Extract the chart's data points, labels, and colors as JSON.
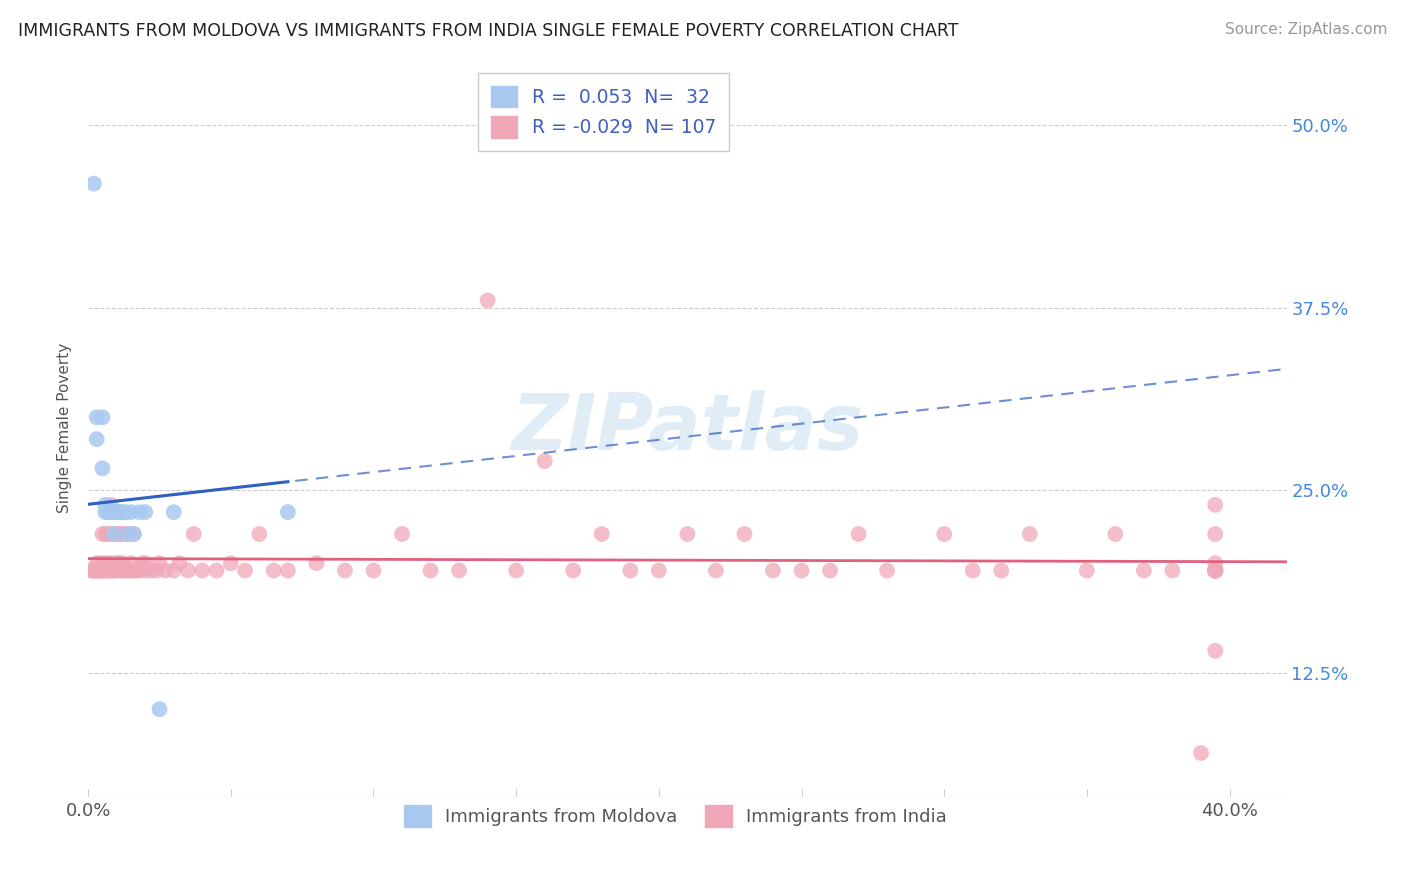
{
  "title": "IMMIGRANTS FROM MOLDOVA VS IMMIGRANTS FROM INDIA SINGLE FEMALE POVERTY CORRELATION CHART",
  "source": "Source: ZipAtlas.com",
  "ylabel": "Single Female Poverty",
  "xlim": [
    0.0,
    0.42
  ],
  "ylim": [
    0.04,
    0.545
  ],
  "moldova_R": 0.053,
  "moldova_N": 32,
  "india_R": -0.029,
  "india_N": 107,
  "moldova_color": "#a8c8f0",
  "india_color": "#f0a8b8",
  "moldova_line_color": "#3060c0",
  "india_line_color": "#e06080",
  "watermark": "ZIPatlas",
  "legend_label_moldova": "Immigrants from Moldova",
  "legend_label_india": "Immigrants from India",
  "ytick_positions": [
    0.125,
    0.25,
    0.375,
    0.5
  ],
  "ytick_labels": [
    "12.5%",
    "25.0%",
    "37.5%",
    "50.0%"
  ],
  "moldova_x": [
    0.002,
    0.003,
    0.003,
    0.005,
    0.005,
    0.006,
    0.006,
    0.007,
    0.007,
    0.008,
    0.008,
    0.008,
    0.009,
    0.009,
    0.009,
    0.009,
    0.01,
    0.01,
    0.01,
    0.01,
    0.011,
    0.011,
    0.012,
    0.013,
    0.014,
    0.015,
    0.016,
    0.018,
    0.02,
    0.025,
    0.03,
    0.07
  ],
  "moldova_y": [
    0.46,
    0.285,
    0.3,
    0.265,
    0.3,
    0.24,
    0.235,
    0.235,
    0.235,
    0.235,
    0.235,
    0.235,
    0.235,
    0.235,
    0.235,
    0.22,
    0.235,
    0.235,
    0.235,
    0.235,
    0.235,
    0.235,
    0.235,
    0.235,
    0.22,
    0.235,
    0.22,
    0.235,
    0.235,
    0.1,
    0.235,
    0.235
  ],
  "india_x": [
    0.001,
    0.002,
    0.002,
    0.003,
    0.003,
    0.003,
    0.004,
    0.004,
    0.004,
    0.005,
    0.005,
    0.005,
    0.005,
    0.006,
    0.006,
    0.006,
    0.006,
    0.007,
    0.007,
    0.007,
    0.007,
    0.008,
    0.008,
    0.008,
    0.008,
    0.009,
    0.009,
    0.009,
    0.01,
    0.01,
    0.01,
    0.01,
    0.011,
    0.011,
    0.011,
    0.012,
    0.012,
    0.012,
    0.013,
    0.013,
    0.014,
    0.014,
    0.015,
    0.015,
    0.016,
    0.016,
    0.017,
    0.018,
    0.019,
    0.02,
    0.02,
    0.022,
    0.024,
    0.025,
    0.027,
    0.03,
    0.032,
    0.035,
    0.037,
    0.04,
    0.045,
    0.05,
    0.055,
    0.06,
    0.065,
    0.07,
    0.08,
    0.09,
    0.1,
    0.11,
    0.12,
    0.13,
    0.14,
    0.15,
    0.16,
    0.17,
    0.18,
    0.19,
    0.2,
    0.21,
    0.22,
    0.23,
    0.24,
    0.25,
    0.26,
    0.27,
    0.28,
    0.3,
    0.31,
    0.32,
    0.33,
    0.35,
    0.36,
    0.37,
    0.38,
    0.39,
    0.395,
    0.395,
    0.395,
    0.395,
    0.395,
    0.395,
    0.395,
    0.395,
    0.395,
    0.395,
    0.395
  ],
  "india_y": [
    0.195,
    0.195,
    0.195,
    0.2,
    0.195,
    0.195,
    0.2,
    0.195,
    0.195,
    0.195,
    0.195,
    0.2,
    0.22,
    0.195,
    0.195,
    0.2,
    0.22,
    0.195,
    0.195,
    0.2,
    0.22,
    0.195,
    0.2,
    0.22,
    0.24,
    0.195,
    0.195,
    0.22,
    0.195,
    0.2,
    0.2,
    0.22,
    0.195,
    0.2,
    0.22,
    0.195,
    0.2,
    0.22,
    0.195,
    0.22,
    0.195,
    0.22,
    0.195,
    0.2,
    0.195,
    0.22,
    0.195,
    0.195,
    0.2,
    0.195,
    0.2,
    0.195,
    0.195,
    0.2,
    0.195,
    0.195,
    0.2,
    0.195,
    0.22,
    0.195,
    0.195,
    0.2,
    0.195,
    0.22,
    0.195,
    0.195,
    0.2,
    0.195,
    0.195,
    0.22,
    0.195,
    0.195,
    0.38,
    0.195,
    0.27,
    0.195,
    0.22,
    0.195,
    0.195,
    0.22,
    0.195,
    0.22,
    0.195,
    0.195,
    0.195,
    0.22,
    0.195,
    0.22,
    0.195,
    0.195,
    0.22,
    0.195,
    0.22,
    0.195,
    0.195,
    0.07,
    0.14,
    0.195,
    0.2,
    0.22,
    0.24,
    0.195,
    0.195,
    0.195,
    0.195,
    0.195,
    0.195
  ]
}
